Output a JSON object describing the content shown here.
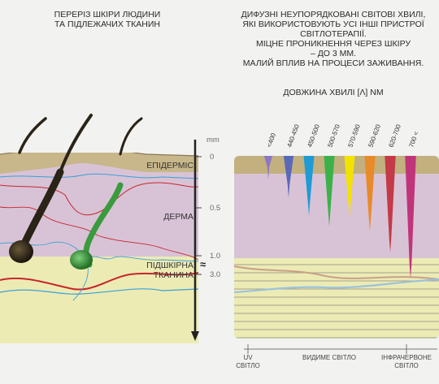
{
  "left_title": {
    "line1": "ПЕРЕРІЗ ШКІРИ ЛЮДИНИ",
    "line2": "ТА ПІДЛЕЖАЧИХ ТКАНИН"
  },
  "right_text": {
    "line1": "ДИФУЗНІ НЕУПОРЯДКОВАНІ СВІТОВІ ХВИЛІ,",
    "line2": "ЯКІ ВИКОРИСТОВУЮТЬ УСІ ІНШІ ПРИСТРОЇ",
    "line3": "СВІТЛОТЕРАПІЇ.",
    "line4": "МІЦНЕ ПРОНИКНЕННЯ ЧЕРЕЗ ШКІРУ",
    "line5": "– ДО 3 ММ.",
    "line6": "МАЛИЙ ВПЛИВ НА ПРОЦЕСИ ЗАЖИВАННЯ."
  },
  "wavelength_title": "ДОВЖИНА ХВИЛІ [λ] NM",
  "layers": {
    "epidermis": "ЕПІДЕРМІС",
    "dermis": "ДЕРМА",
    "subcutis_line1": "ПІДШКІРНА",
    "subcutis_line2": "ТКАНИНА"
  },
  "scale": {
    "unit": "mm",
    "ticks": [
      "0",
      "0.5",
      "1.0",
      "3.0"
    ],
    "break_symbol": "≈"
  },
  "wavelength_bands": [
    {
      "label": "<400",
      "color": "#8b78c4",
      "depth": 0.22
    },
    {
      "label": "440-450",
      "color": "#5a68b8",
      "depth": 0.36
    },
    {
      "label": "450-500",
      "color": "#1e9ad6",
      "depth": 0.5
    },
    {
      "label": "500-570",
      "color": "#3bb14a",
      "depth": 0.58
    },
    {
      "label": "570-590",
      "color": "#f2e200",
      "depth": 0.52
    },
    {
      "label": "590-620",
      "color": "#e88a2a",
      "depth": 0.62
    },
    {
      "label": "620-700",
      "color": "#c43a48",
      "depth": 0.78
    },
    {
      "label": "700 <",
      "color": "#c0357a",
      "depth": 0.98
    }
  ],
  "spectrum_axis": {
    "uv_line1": "UV",
    "uv_line2": "СВІТЛО",
    "visible": "ВИДИМЕ СВІТЛО",
    "ir_line1": "ІНФРАЧЕРВОНЕ",
    "ir_line2": "СВІТЛО"
  },
  "colors": {
    "epidermis": "#c8b78a",
    "dermis": "#d8c3d6",
    "subcutis": "#ecebb4",
    "hair": "#2a2318",
    "follicle_green": "#3a9a3e",
    "vessel_red": "#c8252c",
    "vessel_blue": "#3aa0d6"
  }
}
